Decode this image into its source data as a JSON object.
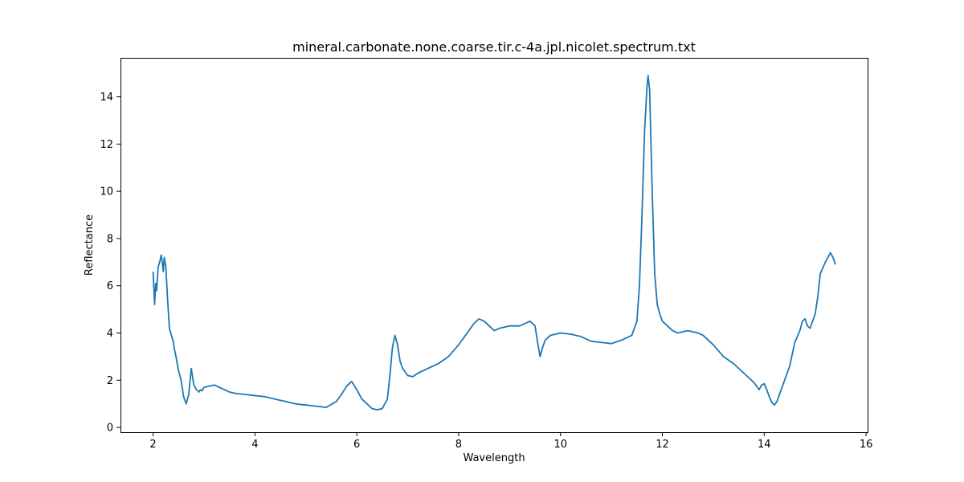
{
  "chart_data": {
    "type": "line",
    "title": "mineral.carbonate.none.coarse.tir.c-4a.jpl.nicolet.spectrum.txt",
    "xlabel": "Wavelength",
    "ylabel": "Reflectance",
    "xlim": [
      1.36,
      16.03
    ],
    "ylim": [
      -0.2,
      15.65
    ],
    "xticks": [
      2,
      4,
      6,
      8,
      10,
      12,
      14,
      16
    ],
    "yticks": [
      0,
      2,
      4,
      6,
      8,
      10,
      12,
      14
    ],
    "grid": false,
    "line_color": "#1f77b4",
    "series": [
      {
        "x": [
          2.0,
          2.03,
          2.05,
          2.07,
          2.1,
          2.13,
          2.16,
          2.18,
          2.2,
          2.22,
          2.25,
          2.28,
          2.32,
          2.36,
          2.4,
          2.42,
          2.45,
          2.5,
          2.55,
          2.6,
          2.65,
          2.7,
          2.75,
          2.8,
          2.85,
          2.88,
          2.9,
          2.93,
          2.96,
          3.0,
          3.1,
          3.2,
          3.3,
          3.4,
          3.5,
          3.6,
          3.8,
          4.0,
          4.2,
          4.4,
          4.6,
          4.8,
          5.0,
          5.2,
          5.4,
          5.6,
          5.7,
          5.8,
          5.9,
          6.0,
          6.1,
          6.2,
          6.3,
          6.4,
          6.5,
          6.6,
          6.65,
          6.7,
          6.75,
          6.8,
          6.85,
          6.9,
          7.0,
          7.1,
          7.2,
          7.4,
          7.6,
          7.8,
          8.0,
          8.2,
          8.3,
          8.4,
          8.5,
          8.6,
          8.7,
          8.8,
          9.0,
          9.2,
          9.3,
          9.4,
          9.5,
          9.55,
          9.6,
          9.65,
          9.7,
          9.8,
          10.0,
          10.2,
          10.4,
          10.6,
          10.8,
          11.0,
          11.2,
          11.3,
          11.4,
          11.5,
          11.55,
          11.6,
          11.65,
          11.7,
          11.72,
          11.75,
          11.8,
          11.85,
          11.9,
          11.95,
          12.0,
          12.1,
          12.2,
          12.3,
          12.5,
          12.7,
          12.8,
          13.0,
          13.2,
          13.4,
          13.5,
          13.6,
          13.7,
          13.8,
          13.9,
          13.95,
          14.0,
          14.05,
          14.1,
          14.15,
          14.2,
          14.25,
          14.3,
          14.4,
          14.5,
          14.6,
          14.7,
          14.75,
          14.8,
          14.85,
          14.9,
          15.0,
          15.05,
          15.1,
          15.2,
          15.3,
          15.35,
          15.4
        ],
        "y": [
          6.6,
          5.2,
          6.1,
          5.8,
          6.8,
          7.0,
          7.3,
          7.0,
          6.6,
          7.2,
          6.8,
          5.6,
          4.2,
          3.9,
          3.6,
          3.3,
          3.0,
          2.4,
          2.0,
          1.3,
          1.0,
          1.4,
          2.5,
          1.8,
          1.6,
          1.55,
          1.5,
          1.6,
          1.55,
          1.7,
          1.75,
          1.8,
          1.7,
          1.6,
          1.5,
          1.45,
          1.4,
          1.35,
          1.3,
          1.2,
          1.1,
          1.0,
          0.95,
          0.9,
          0.85,
          1.1,
          1.4,
          1.75,
          1.95,
          1.6,
          1.2,
          1.0,
          0.8,
          0.75,
          0.8,
          1.2,
          2.2,
          3.4,
          3.9,
          3.5,
          2.8,
          2.5,
          2.2,
          2.15,
          2.3,
          2.5,
          2.7,
          3.0,
          3.5,
          4.1,
          4.4,
          4.6,
          4.5,
          4.3,
          4.1,
          4.2,
          4.3,
          4.3,
          4.4,
          4.5,
          4.3,
          3.6,
          3.0,
          3.4,
          3.7,
          3.9,
          4.0,
          3.95,
          3.85,
          3.65,
          3.6,
          3.55,
          3.7,
          3.8,
          3.9,
          4.5,
          6.0,
          9.0,
          12.5,
          14.5,
          14.9,
          14.3,
          10.0,
          6.5,
          5.2,
          4.8,
          4.5,
          4.3,
          4.1,
          4.0,
          4.1,
          4.0,
          3.9,
          3.5,
          3.0,
          2.7,
          2.5,
          2.3,
          2.1,
          1.9,
          1.6,
          1.8,
          1.85,
          1.6,
          1.3,
          1.05,
          0.95,
          1.1,
          1.4,
          2.0,
          2.6,
          3.6,
          4.1,
          4.5,
          4.6,
          4.3,
          4.2,
          4.8,
          5.5,
          6.5,
          7.0,
          7.4,
          7.2,
          6.9
        ]
      }
    ]
  }
}
